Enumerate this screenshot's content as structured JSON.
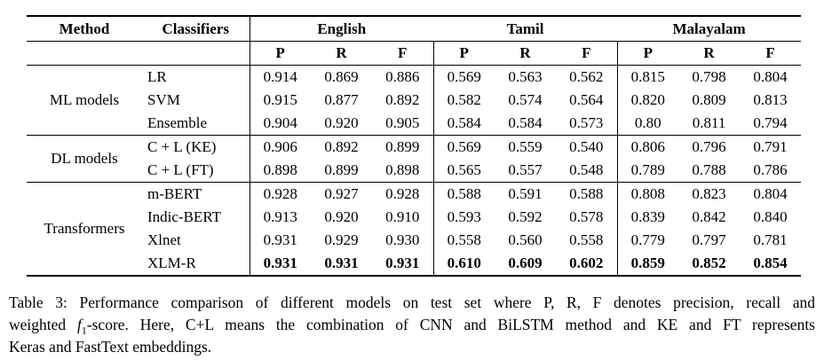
{
  "page": {
    "background": "#ffffff",
    "text_color": "#000000",
    "rule_color": "#000000"
  },
  "table": {
    "header": {
      "method": "Method",
      "classifiers": "Classifiers",
      "languages": [
        "English",
        "Tamil",
        "Malayalam"
      ],
      "metrics": [
        "P",
        "R",
        "F"
      ]
    },
    "groups": [
      {
        "method": "ML models",
        "rows": [
          {
            "classifier": "LR",
            "bold": false,
            "values": [
              "0.914",
              "0.869",
              "0.886",
              "0.569",
              "0.563",
              "0.562",
              "0.815",
              "0.798",
              "0.804"
            ]
          },
          {
            "classifier": "SVM",
            "bold": false,
            "values": [
              "0.915",
              "0.877",
              "0.892",
              "0.582",
              "0.574",
              "0.564",
              "0.820",
              "0.809",
              "0.813"
            ]
          },
          {
            "classifier": "Ensemble",
            "bold": false,
            "values": [
              "0.904",
              "0.920",
              "0.905",
              "0.584",
              "0.584",
              "0.573",
              "0.80",
              "0.811",
              "0.794"
            ]
          }
        ]
      },
      {
        "method": "DL models",
        "rows": [
          {
            "classifier": "C + L (KE)",
            "bold": false,
            "values": [
              "0.906",
              "0.892",
              "0.899",
              "0.569",
              "0.559",
              "0.540",
              "0.806",
              "0.796",
              "0.791"
            ]
          },
          {
            "classifier": "C + L (FT)",
            "bold": false,
            "values": [
              "0.898",
              "0.899",
              "0.898",
              "0.565",
              "0.557",
              "0.548",
              "0.789",
              "0.788",
              "0.786"
            ]
          }
        ]
      },
      {
        "method": "Transformers",
        "rows": [
          {
            "classifier": "m-BERT",
            "bold": false,
            "values": [
              "0.928",
              "0.927",
              "0.928",
              "0.588",
              "0.591",
              "0.588",
              "0.808",
              "0.823",
              "0.804"
            ]
          },
          {
            "classifier": "Indic-BERT",
            "bold": false,
            "values": [
              "0.913",
              "0.920",
              "0.910",
              "0.593",
              "0.592",
              "0.578",
              "0.839",
              "0.842",
              "0.840"
            ]
          },
          {
            "classifier": "Xlnet",
            "bold": false,
            "values": [
              "0.931",
              "0.929",
              "0.930",
              "0.558",
              "0.560",
              "0.558",
              "0.779",
              "0.797",
              "0.781"
            ]
          },
          {
            "classifier": "XLM-R",
            "bold": true,
            "values": [
              "0.931",
              "0.931",
              "0.931",
              "0.610",
              "0.609",
              "0.602",
              "0.859",
              "0.852",
              "0.854"
            ]
          }
        ]
      }
    ]
  },
  "caption": {
    "line1": "Table 3: Performance comparison of different models on test set where P, R, F denotes precision, recall and",
    "line2_pre": "weighted ",
    "line2_f": "f",
    "line2_sub": "1",
    "line2_post": "-score. Here, C+L means the combination of CNN and BiLSTM method and KE and FT represents",
    "line3": "Keras and FastText embeddings."
  }
}
